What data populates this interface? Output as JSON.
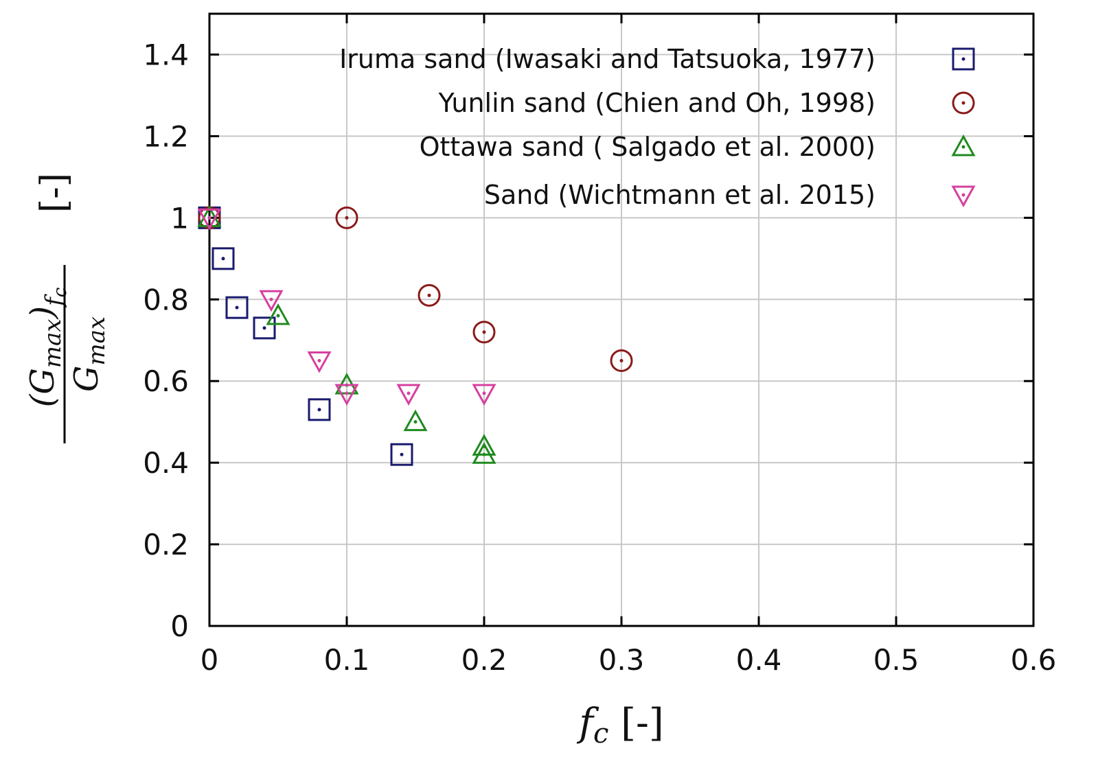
{
  "chart_data": {
    "type": "scatter",
    "title": "",
    "xlabel": "f_c [-]",
    "ylabel": "(G_max)_fc / G_max [-]",
    "xlim": [
      0,
      0.6
    ],
    "ylim": [
      0,
      1.5
    ],
    "x_ticks": [
      "0",
      "0.1",
      "0.2",
      "0.3",
      "0.4",
      "0.5",
      "0.6"
    ],
    "y_ticks": [
      "0",
      "0.2",
      "0.4",
      "0.6",
      "0.8",
      "1",
      "1.2",
      "1.4"
    ],
    "grid": true,
    "legend_position": "top-right",
    "series": [
      {
        "name": "Iruma sand (Iwasaki and Tatsuoka, 1977)",
        "marker": "square",
        "color": "#1a1a6e",
        "x": [
          0.0,
          0.01,
          0.02,
          0.04,
          0.08,
          0.14
        ],
        "y": [
          1.0,
          0.9,
          0.78,
          0.73,
          0.53,
          0.42
        ]
      },
      {
        "name": "Yunlin sand (Chien and Oh, 1998)",
        "marker": "circle",
        "color": "#8b1a1a",
        "x": [
          0.0,
          0.1,
          0.16,
          0.2,
          0.3
        ],
        "y": [
          1.0,
          1.0,
          0.81,
          0.72,
          0.65
        ]
      },
      {
        "name": "Ottawa sand ( Salgado et al. 2000)",
        "marker": "triangle-up",
        "color": "#1f8a1f",
        "x": [
          0.0,
          0.05,
          0.1,
          0.15,
          0.2,
          0.2
        ],
        "y": [
          1.0,
          0.76,
          0.59,
          0.5,
          0.44,
          0.42
        ]
      },
      {
        "name": "Sand (Wichtmann et al. 2015)",
        "marker": "triangle-down",
        "color": "#d6409f",
        "x": [
          0.0,
          0.045,
          0.08,
          0.1,
          0.145,
          0.2
        ],
        "y": [
          1.0,
          0.8,
          0.65,
          0.57,
          0.57,
          0.57
        ]
      }
    ]
  }
}
